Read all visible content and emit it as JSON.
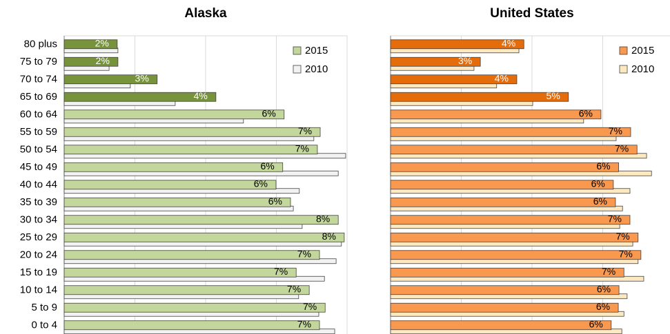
{
  "chart_data": [
    {
      "type": "bar",
      "orientation": "horizontal",
      "title": "Alaska",
      "categories": [
        "80 plus",
        "75 to 79",
        "70 to 74",
        "65 to 69",
        "60 to 64",
        "55 to 59",
        "50 to 54",
        "45 to 49",
        "40 to 44",
        "35 to 39",
        "30 to 34",
        "25 to 29",
        "20 to 24",
        "15 to 19",
        "10 to 14",
        "5 to 9",
        "0 to 4"
      ],
      "series": [
        {
          "name": "2015",
          "color": "#c3d69b",
          "colors": [
            "#77933c",
            "#77933c",
            "#77933c",
            "#77933c",
            "#c3d69b",
            "#c3d69b",
            "#c3d69b",
            "#c3d69b",
            "#c3d69b",
            "#c3d69b",
            "#c3d69b",
            "#c3d69b",
            "#c3d69b",
            "#c3d69b",
            "#c3d69b",
            "#c3d69b",
            "#c3d69b"
          ],
          "values": [
            1.5,
            1.52,
            2.63,
            4.29,
            6.22,
            7.24,
            7.16,
            6.18,
            5.99,
            6.4,
            7.75,
            7.92,
            7.22,
            6.56,
            6.93,
            7.38,
            7.22
          ],
          "value_labels": [
            "2%",
            "2%",
            "3%",
            "4%",
            "6%",
            "7%",
            "7%",
            "6%",
            "6%",
            "6%",
            "8%",
            "8%",
            "7%",
            "7%",
            "7%",
            "7%",
            "7%"
          ]
        },
        {
          "name": "2010",
          "color": "#f2f2f2",
          "values": [
            1.52,
            1.27,
            1.87,
            3.14,
            5.07,
            7.06,
            7.96,
            7.75,
            6.65,
            6.48,
            6.73,
            7.84,
            7.69,
            7.36,
            6.63,
            7.2,
            7.65
          ]
        }
      ],
      "xlim": [
        0,
        8
      ],
      "xticks": [
        0,
        2,
        4,
        6,
        8
      ],
      "grid": true,
      "legend": "upper right"
    },
    {
      "type": "bar",
      "orientation": "horizontal",
      "title": "United States",
      "series": [
        {
          "name": "2015",
          "color": "#f9984f",
          "colors": [
            "#e46c0a",
            "#e46c0a",
            "#e46c0a",
            "#e46c0a",
            "#f9984f",
            "#f9984f",
            "#f9984f",
            "#f9984f",
            "#f9984f",
            "#f9984f",
            "#f9984f",
            "#f9984f",
            "#f9984f",
            "#f9984f",
            "#f9984f",
            "#f9984f",
            "#f9984f"
          ],
          "values": [
            3.77,
            2.54,
            3.57,
            5.03,
            5.95,
            6.79,
            6.97,
            6.45,
            6.3,
            6.36,
            6.77,
            7.0,
            7.08,
            6.6,
            6.46,
            6.44,
            6.24
          ],
          "value_labels": [
            "4%",
            "3%",
            "4%",
            "5%",
            "6%",
            "7%",
            "7%",
            "6%",
            "6%",
            "6%",
            "7%",
            "7%",
            "7%",
            "7%",
            "6%",
            "6%",
            "6%"
          ]
        },
        {
          "name": "2010",
          "color": "#fde9c0",
          "values": [
            3.63,
            2.36,
            3.0,
            4.02,
            5.46,
            6.38,
            7.24,
            7.38,
            6.77,
            6.56,
            6.48,
            6.85,
            7.0,
            7.16,
            6.69,
            6.6,
            6.54
          ]
        }
      ],
      "xlim": [
        0,
        8
      ],
      "xticks": [
        0,
        2,
        4,
        6,
        8
      ],
      "grid": true,
      "legend": "upper right"
    }
  ]
}
